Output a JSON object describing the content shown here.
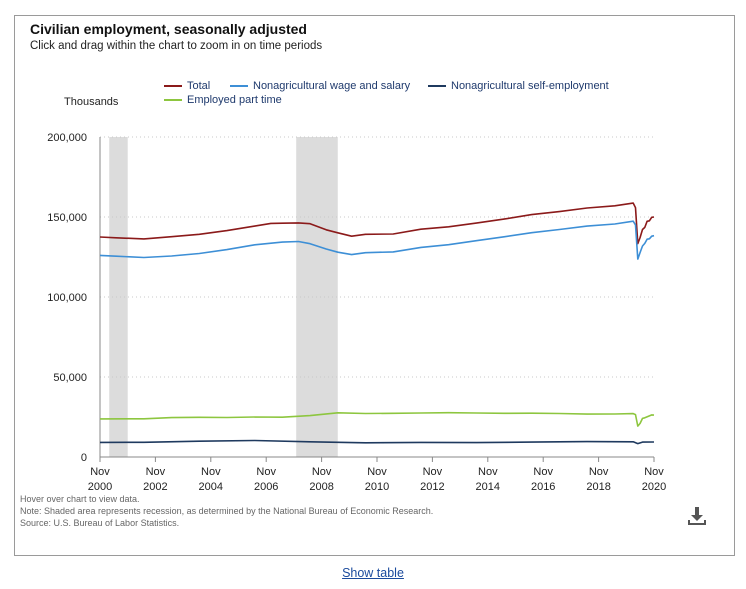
{
  "chart_data": {
    "type": "line",
    "title": "Civilian employment, seasonally adjusted",
    "subtitle": "Click and drag within the chart to zoom in on time periods",
    "ylabel": "Thousands",
    "ylim": [
      0,
      200000
    ],
    "yticks": [
      0,
      50000,
      100000,
      150000,
      200000
    ],
    "ytick_labels": [
      "0",
      "50,000",
      "100,000",
      "150,000",
      "200,000"
    ],
    "xlim": [
      "2000-11",
      "2020-11"
    ],
    "xticks": [
      "2000-11",
      "2002-11",
      "2004-11",
      "2006-11",
      "2008-11",
      "2010-11",
      "2012-11",
      "2014-11",
      "2016-11",
      "2018-11",
      "2020-11"
    ],
    "xtick_labels": [
      [
        "Nov",
        "2000"
      ],
      [
        "Nov",
        "2002"
      ],
      [
        "Nov",
        "2004"
      ],
      [
        "Nov",
        "2006"
      ],
      [
        "Nov",
        "2008"
      ],
      [
        "Nov",
        "2010"
      ],
      [
        "Nov",
        "2012"
      ],
      [
        "Nov",
        "2014"
      ],
      [
        "Nov",
        "2016"
      ],
      [
        "Nov",
        "2018"
      ],
      [
        "Nov",
        "2020"
      ]
    ],
    "grid": "horizontal dotted",
    "legend_position": "top",
    "recessions": [
      [
        "2001-03",
        "2001-11"
      ],
      [
        "2007-12",
        "2009-06"
      ]
    ],
    "series": [
      {
        "name": "Total",
        "color": "#8b1a1a",
        "points": [
          [
            "2000-11",
            137500
          ],
          [
            "2001-06",
            137000
          ],
          [
            "2002-06",
            136300
          ],
          [
            "2003-06",
            137700
          ],
          [
            "2004-06",
            139200
          ],
          [
            "2005-06",
            141500
          ],
          [
            "2006-06",
            144300
          ],
          [
            "2007-01",
            146000
          ],
          [
            "2007-06",
            146100
          ],
          [
            "2008-01",
            146300
          ],
          [
            "2008-06",
            145800
          ],
          [
            "2009-01",
            142000
          ],
          [
            "2009-06",
            140100
          ],
          [
            "2009-12",
            138000
          ],
          [
            "2010-06",
            139200
          ],
          [
            "2011-06",
            139400
          ],
          [
            "2012-06",
            142400
          ],
          [
            "2013-06",
            143900
          ],
          [
            "2014-06",
            146200
          ],
          [
            "2015-06",
            148700
          ],
          [
            "2016-06",
            151500
          ],
          [
            "2017-06",
            153400
          ],
          [
            "2018-06",
            155600
          ],
          [
            "2019-06",
            157000
          ],
          [
            "2020-02",
            158700
          ],
          [
            "2020-03",
            155800
          ],
          [
            "2020-04",
            133400
          ],
          [
            "2020-05",
            137200
          ],
          [
            "2020-06",
            142200
          ],
          [
            "2020-07",
            143500
          ],
          [
            "2020-08",
            147300
          ],
          [
            "2020-09",
            147600
          ],
          [
            "2020-10",
            149800
          ],
          [
            "2020-11",
            150000
          ]
        ]
      },
      {
        "name": "Nonagricultural wage and salary",
        "color": "#3d8fd6",
        "points": [
          [
            "2000-11",
            126000
          ],
          [
            "2001-06",
            125500
          ],
          [
            "2002-06",
            124700
          ],
          [
            "2003-06",
            125600
          ],
          [
            "2004-06",
            127200
          ],
          [
            "2005-06",
            129600
          ],
          [
            "2006-06",
            132600
          ],
          [
            "2007-06",
            134300
          ],
          [
            "2008-01",
            134700
          ],
          [
            "2008-06",
            133300
          ],
          [
            "2009-01",
            130000
          ],
          [
            "2009-06",
            128000
          ],
          [
            "2009-12",
            126500
          ],
          [
            "2010-06",
            127700
          ],
          [
            "2011-06",
            128200
          ],
          [
            "2012-06",
            131000
          ],
          [
            "2013-06",
            132700
          ],
          [
            "2014-06",
            135200
          ],
          [
            "2015-06",
            137600
          ],
          [
            "2016-06",
            140200
          ],
          [
            "2017-06",
            142200
          ],
          [
            "2018-06",
            144300
          ],
          [
            "2019-06",
            145600
          ],
          [
            "2020-02",
            147400
          ],
          [
            "2020-03",
            145000
          ],
          [
            "2020-04",
            123700
          ],
          [
            "2020-05",
            127800
          ],
          [
            "2020-06",
            131900
          ],
          [
            "2020-07",
            133500
          ],
          [
            "2020-08",
            136100
          ],
          [
            "2020-09",
            136400
          ],
          [
            "2020-10",
            138000
          ],
          [
            "2020-11",
            138300
          ]
        ]
      },
      {
        "name": "Nonagricultural self-employment",
        "color": "#1f3a5f",
        "points": [
          [
            "2000-11",
            9100
          ],
          [
            "2002-06",
            9200
          ],
          [
            "2004-06",
            9900
          ],
          [
            "2006-06",
            10300
          ],
          [
            "2008-06",
            9500
          ],
          [
            "2010-06",
            8900
          ],
          [
            "2012-06",
            9100
          ],
          [
            "2014-06",
            9000
          ],
          [
            "2016-06",
            9300
          ],
          [
            "2018-06",
            9600
          ],
          [
            "2020-02",
            9500
          ],
          [
            "2020-04",
            8400
          ],
          [
            "2020-06",
            9300
          ],
          [
            "2020-11",
            9400
          ]
        ]
      },
      {
        "name": "Employed part time",
        "color": "#8dc63f",
        "points": [
          [
            "2000-11",
            23800
          ],
          [
            "2002-06",
            23900
          ],
          [
            "2003-06",
            24600
          ],
          [
            "2004-06",
            24800
          ],
          [
            "2005-06",
            24700
          ],
          [
            "2006-06",
            25000
          ],
          [
            "2007-06",
            24900
          ],
          [
            "2008-06",
            25900
          ],
          [
            "2009-06",
            27600
          ],
          [
            "2010-06",
            27200
          ],
          [
            "2011-06",
            27300
          ],
          [
            "2012-06",
            27500
          ],
          [
            "2013-06",
            27700
          ],
          [
            "2014-06",
            27500
          ],
          [
            "2015-06",
            27300
          ],
          [
            "2016-06",
            27400
          ],
          [
            "2017-06",
            27200
          ],
          [
            "2018-06",
            26800
          ],
          [
            "2019-06",
            26900
          ],
          [
            "2020-02",
            27100
          ],
          [
            "2020-03",
            26500
          ],
          [
            "2020-04",
            19300
          ],
          [
            "2020-05",
            21000
          ],
          [
            "2020-06",
            24100
          ],
          [
            "2020-07",
            24500
          ],
          [
            "2020-09",
            25700
          ],
          [
            "2020-10",
            26300
          ],
          [
            "2020-11",
            26200
          ]
        ]
      }
    ]
  },
  "legend": {
    "total": "Total",
    "wage_salary": "Nonagricultural wage and salary",
    "self_employment": "Nonagricultural self-employment",
    "part_time": "Employed part time"
  },
  "colors": {
    "total": "#8b1a1a",
    "wage_salary": "#3d8fd6",
    "self_employment": "#1f3a5f",
    "part_time": "#8dc63f",
    "recession": "#dcdcdc"
  },
  "notes": {
    "hover": "Hover over chart to view data.",
    "note": "Note: Shaded area represents recession, as determined by the National Bureau of Economic Research.",
    "source": "Source: U.S. Bureau of Labor Statistics."
  },
  "icons": {
    "download": "download-icon"
  },
  "show_table_label": "Show table"
}
